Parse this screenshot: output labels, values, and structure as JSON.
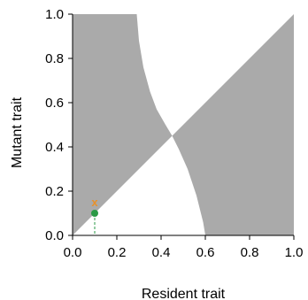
{
  "chart_data": {
    "type": "area",
    "xlabel": "Resident trait",
    "ylabel": "Mutant trait",
    "xlim": [
      0.0,
      1.0
    ],
    "ylim": [
      0.0,
      1.0
    ],
    "xticks": [
      "0.0",
      "0.2",
      "0.4",
      "0.6",
      "0.8",
      "1.0"
    ],
    "yticks": [
      "0.0",
      "0.2",
      "0.4",
      "0.6",
      "0.8",
      "1.0"
    ],
    "grid": false,
    "legend": "none",
    "shaded_color": "#aaaaaa",
    "boundary_curve": {
      "x": [
        0.29,
        0.3,
        0.32,
        0.35,
        0.38,
        0.42,
        0.45,
        0.48,
        0.52,
        0.56,
        0.59,
        0.6
      ],
      "y": [
        1.0,
        0.88,
        0.76,
        0.65,
        0.57,
        0.5,
        0.45,
        0.39,
        0.3,
        0.18,
        0.06,
        0.0
      ]
    },
    "singular_strategy": {
      "x": 0.45,
      "y": 0.45
    },
    "trajectory": {
      "resident": {
        "x": 0.1,
        "y": 0.1,
        "color": "#2a9a46"
      },
      "mutant": {
        "x": 0.1,
        "y": 0.15,
        "marker": "x",
        "marker_text": "x",
        "color": "#e8912b"
      },
      "guide_color": "#2a9a46"
    }
  }
}
